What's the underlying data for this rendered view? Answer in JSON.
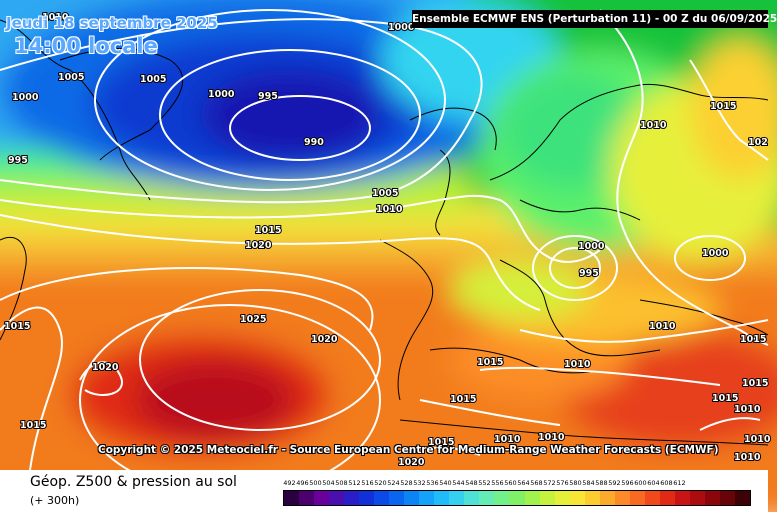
{
  "header": {
    "date_line": "Jeudi 18 septembre 2025",
    "time_line": "14:00 locale",
    "model_banner": "Ensemble ECMWF ENS  (Perturbation 11)  -  00 Z du 06/09/2025"
  },
  "map": {
    "copyright": "Copyright © 2025 Meteociel.fr - Source European Centre for Medium-Range Weather Forecasts (ECMWF)",
    "isobar_labels": [
      {
        "text": "1010",
        "region": "top-left-corner"
      },
      {
        "text": "1000",
        "region": "greenland-west"
      },
      {
        "text": "1005",
        "region": "greenland-south"
      },
      {
        "text": "1005",
        "region": "labrador-sea"
      },
      {
        "text": "1000",
        "region": "south-greenland-low"
      },
      {
        "text": "995",
        "region": "iceland-low-west"
      },
      {
        "text": "990",
        "region": "iceland-low-center"
      },
      {
        "text": "995",
        "region": "labrador"
      },
      {
        "text": "1000",
        "region": "norway-sea-north"
      },
      {
        "text": "1005",
        "region": "north-atlantic"
      },
      {
        "text": "1010",
        "region": "north-atlantic"
      },
      {
        "text": "1015",
        "region": "mid-atlantic"
      },
      {
        "text": "1020",
        "region": "mid-atlantic"
      },
      {
        "text": "1025",
        "region": "azores-high"
      },
      {
        "text": "1020",
        "region": "azores-west"
      },
      {
        "text": "1020",
        "region": "west-atlantic"
      },
      {
        "text": "1015",
        "region": "west-atlantic"
      },
      {
        "text": "1015",
        "region": "southwest-atlantic"
      },
      {
        "text": "1015",
        "region": "scandinavia-north"
      },
      {
        "text": "1010",
        "region": "finland"
      },
      {
        "text": "102",
        "region": "northern-russia"
      },
      {
        "text": "1000",
        "region": "baltic-low"
      },
      {
        "text": "995",
        "region": "baltic-low-center"
      },
      {
        "text": "1000",
        "region": "russia-low"
      },
      {
        "text": "1010",
        "region": "ukraine"
      },
      {
        "text": "1015",
        "region": "black-sea"
      },
      {
        "text": "1015",
        "region": "france"
      },
      {
        "text": "1010",
        "region": "italy"
      },
      {
        "text": "1015",
        "region": "iberia"
      },
      {
        "text": "1015",
        "region": "north-africa"
      },
      {
        "text": "1010",
        "region": "mediterranean"
      },
      {
        "text": "1010",
        "region": "mediterranean"
      },
      {
        "text": "1015",
        "region": "greece"
      },
      {
        "text": "1010",
        "region": "turkey"
      },
      {
        "text": "1010",
        "region": "turkey-east"
      },
      {
        "text": "1010",
        "region": "middle-east"
      },
      {
        "text": "1015",
        "region": "middle-east"
      },
      {
        "text": "1020",
        "region": "sahara"
      }
    ]
  },
  "footer": {
    "title": "Géop. Z500 & pression au sol",
    "subtitle": "(+ 300h)",
    "scale_values": [
      "492",
      "496",
      "500",
      "504",
      "508",
      "512",
      "516",
      "520",
      "524",
      "528",
      "532",
      "536",
      "540",
      "544",
      "548",
      "552",
      "556",
      "560",
      "564",
      "568",
      "572",
      "576",
      "580",
      "584",
      "588",
      "592",
      "596",
      "600",
      "604",
      "608",
      "612"
    ],
    "scale_colors": [
      "#2b0040",
      "#4c006e",
      "#6a009c",
      "#4b0fb0",
      "#2a1ec8",
      "#1030d8",
      "#0b4ae6",
      "#0a66f0",
      "#0c84f6",
      "#14a2fa",
      "#20bcfa",
      "#34d0ee",
      "#4fe0d6",
      "#64ecb4",
      "#72f08a",
      "#80f066",
      "#a0f24c",
      "#c4f23e",
      "#e6f03a",
      "#f8e636",
      "#fccc30",
      "#fcaa2c",
      "#fc8a28",
      "#f86a22",
      "#f04a1c",
      "#e02a16",
      "#c81414",
      "#ac0c10",
      "#8a060c",
      "#66040a",
      "#3c0206"
    ]
  }
}
